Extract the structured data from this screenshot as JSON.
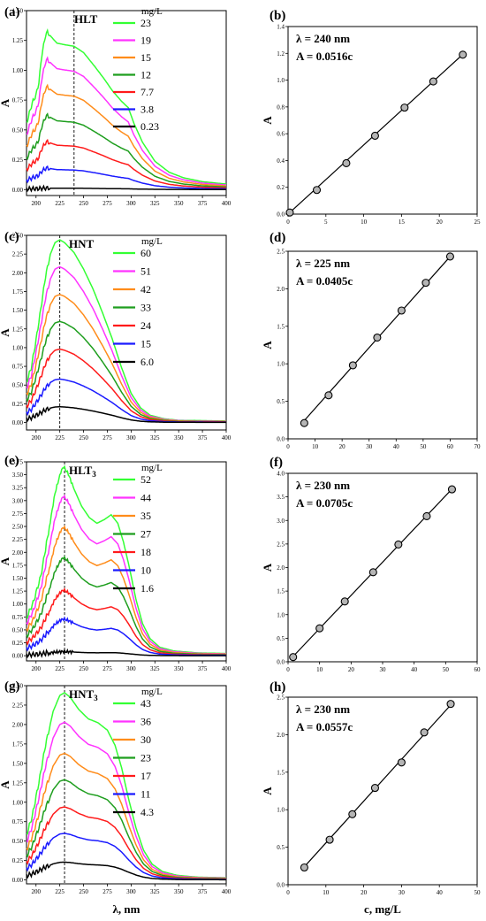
{
  "x_axis_label": "λ, nm",
  "c_axis_label": "c, mg/L",
  "chart_data": [
    {
      "type": "line",
      "panel": "(a)",
      "title": "HLT",
      "title_sub": "",
      "legend_title": "mg/L",
      "ylabel": "A",
      "xlim": [
        190,
        400
      ],
      "ylim": [
        -0.05,
        1.5
      ],
      "xticks": [
        "200",
        "225",
        "250",
        "275",
        "300",
        "325",
        "350",
        "375",
        "400"
      ],
      "yticks": [
        "0.00",
        "0.25",
        "0.50",
        "0.75",
        "1.00",
        "1.25",
        "1.50"
      ],
      "dashed_x": 240,
      "series": [
        {
          "name": "23",
          "color": "#33ff33",
          "peak": 1.32,
          "shape": "hlt"
        },
        {
          "name": "19",
          "color": "#ff33ff",
          "peak": 1.09,
          "shape": "hlt"
        },
        {
          "name": "15",
          "color": "#ff8c1a",
          "peak": 0.86,
          "shape": "hlt"
        },
        {
          "name": "12",
          "color": "#1e9e1e",
          "peak": 0.62,
          "shape": "hlt"
        },
        {
          "name": "7.7",
          "color": "#ff1a1a",
          "peak": 0.4,
          "shape": "hlt"
        },
        {
          "name": "3.8",
          "color": "#1a1aff",
          "peak": 0.18,
          "shape": "hlt"
        },
        {
          "name": "0.23",
          "color": "#000000",
          "peak": 0.012,
          "shape": "hlt"
        }
      ]
    },
    {
      "type": "line",
      "panel": "(c)",
      "title": "HNT",
      "title_sub": "",
      "legend_title": "mg/L",
      "ylabel": "A",
      "xlim": [
        190,
        400
      ],
      "ylim": [
        -0.1,
        2.5
      ],
      "xticks": [
        "200",
        "225",
        "250",
        "275",
        "300",
        "325",
        "350",
        "375",
        "400"
      ],
      "yticks": [
        "0.00",
        "0.25",
        "0.50",
        "0.75",
        "1.00",
        "1.25",
        "1.50",
        "1.75",
        "2.00",
        "2.25",
        "2.50"
      ],
      "dashed_x": 225,
      "series": [
        {
          "name": "60",
          "color": "#33ff33",
          "peak": 2.44,
          "shape": "hnt"
        },
        {
          "name": "51",
          "color": "#ff33ff",
          "peak": 2.08,
          "shape": "hnt"
        },
        {
          "name": "42",
          "color": "#ff8c1a",
          "peak": 1.71,
          "shape": "hnt"
        },
        {
          "name": "33",
          "color": "#1e9e1e",
          "peak": 1.35,
          "shape": "hnt"
        },
        {
          "name": "24",
          "color": "#ff1a1a",
          "peak": 0.98,
          "shape": "hnt"
        },
        {
          "name": "15",
          "color": "#1a1aff",
          "peak": 0.58,
          "shape": "hnt"
        },
        {
          "name": "6.0",
          "color": "#000000",
          "peak": 0.21,
          "shape": "hnt"
        }
      ]
    },
    {
      "type": "line",
      "panel": "(e)",
      "title": "HLT",
      "title_sub": "3",
      "legend_title": "mg/L",
      "ylabel": "A",
      "xlim": [
        190,
        400
      ],
      "ylim": [
        -0.1,
        3.75
      ],
      "xticks": [
        "200",
        "225",
        "250",
        "275",
        "300",
        "325",
        "350",
        "375",
        "400"
      ],
      "yticks": [
        "0.00",
        "0.25",
        "0.50",
        "0.75",
        "1.00",
        "1.25",
        "1.50",
        "1.75",
        "2.00",
        "2.25",
        "2.50",
        "2.75",
        "3.00",
        "3.25",
        "3.50",
        "3.75"
      ],
      "dashed_x": 230,
      "series": [
        {
          "name": "52",
          "color": "#33ff33",
          "peak": 3.66,
          "shape": "hlt3"
        },
        {
          "name": "44",
          "color": "#ff33ff",
          "peak": 3.09,
          "shape": "hlt3"
        },
        {
          "name": "35",
          "color": "#ff8c1a",
          "peak": 2.49,
          "shape": "hlt3"
        },
        {
          "name": "27",
          "color": "#1e9e1e",
          "peak": 1.9,
          "shape": "hlt3"
        },
        {
          "name": "18",
          "color": "#ff1a1a",
          "peak": 1.27,
          "shape": "hlt3"
        },
        {
          "name": "10",
          "color": "#1a1aff",
          "peak": 0.71,
          "shape": "hlt3"
        },
        {
          "name": "1.6",
          "color": "#000000",
          "peak": 0.08,
          "shape": "hlt3"
        }
      ]
    },
    {
      "type": "line",
      "panel": "(g)",
      "title": "HNT",
      "title_sub": "3",
      "legend_title": "mg/L",
      "ylabel": "A",
      "xlim": [
        190,
        400
      ],
      "ylim": [
        -0.05,
        2.5
      ],
      "xticks": [
        "200",
        "225",
        "250",
        "275",
        "300",
        "325",
        "350",
        "375",
        "400"
      ],
      "yticks": [
        "0.00",
        "0.25",
        "0.50",
        "0.75",
        "1.00",
        "1.25",
        "1.50",
        "1.75",
        "2.00",
        "2.25",
        "2.50"
      ],
      "dashed_x": 230,
      "series": [
        {
          "name": "43",
          "color": "#33ff33",
          "peak": 2.41,
          "shape": "hnt3"
        },
        {
          "name": "36",
          "color": "#ff33ff",
          "peak": 2.03,
          "shape": "hnt3"
        },
        {
          "name": "30",
          "color": "#ff8c1a",
          "peak": 1.63,
          "shape": "hnt3"
        },
        {
          "name": "23",
          "color": "#1e9e1e",
          "peak": 1.29,
          "shape": "hnt3"
        },
        {
          "name": "17",
          "color": "#ff1a1a",
          "peak": 0.94,
          "shape": "hnt3"
        },
        {
          "name": "11",
          "color": "#1a1aff",
          "peak": 0.6,
          "shape": "hnt3"
        },
        {
          "name": "4.3",
          "color": "#000000",
          "peak": 0.23,
          "shape": "hnt3"
        }
      ]
    },
    {
      "type": "scatter",
      "panel": "(b)",
      "lambda": "λ = 240 nm",
      "equation": "A = 0.0516c",
      "ylabel": "A",
      "xlim": [
        0,
        25
      ],
      "ylim": [
        0,
        1.4
      ],
      "xticks": [
        "0",
        "5",
        "10",
        "15",
        "20",
        "25"
      ],
      "yticks": [
        "0.0",
        "0.2",
        "0.4",
        "0.6",
        "0.8",
        "1.0",
        "1.2",
        "1.4"
      ],
      "slope": 0.0516,
      "x": [
        0.23,
        3.8,
        7.7,
        11.5,
        15.4,
        19.2,
        23.1
      ],
      "y": [
        0.012,
        0.18,
        0.38,
        0.585,
        0.795,
        0.99,
        1.19
      ]
    },
    {
      "type": "scatter",
      "panel": "(d)",
      "lambda": "λ = 225 nm",
      "equation": "A = 0.0405c",
      "ylabel": "A",
      "xlim": [
        0,
        70
      ],
      "ylim": [
        0,
        2.5
      ],
      "xticks": [
        "0",
        "10",
        "20",
        "30",
        "40",
        "50",
        "60",
        "70"
      ],
      "yticks": [
        "0.0",
        "0.5",
        "1.0",
        "1.5",
        "2.0",
        "2.5"
      ],
      "slope": 0.0405,
      "x": [
        6.0,
        15,
        24,
        33,
        42,
        51,
        60
      ],
      "y": [
        0.21,
        0.58,
        0.98,
        1.35,
        1.71,
        2.08,
        2.43
      ]
    },
    {
      "type": "scatter",
      "panel": "(f)",
      "lambda": "λ = 230 nm",
      "equation": "A = 0.0705c",
      "ylabel": "A",
      "xlim": [
        0,
        60
      ],
      "ylim": [
        0,
        4.0
      ],
      "xticks": [
        "0",
        "10",
        "20",
        "30",
        "40",
        "50",
        "60"
      ],
      "yticks": [
        "0.0",
        "0.5",
        "1.0",
        "1.5",
        "2.0",
        "2.5",
        "3.0",
        "3.5",
        "4.0"
      ],
      "slope": 0.0705,
      "x": [
        1.6,
        10,
        18,
        27,
        35,
        44,
        52
      ],
      "y": [
        0.1,
        0.71,
        1.28,
        1.9,
        2.49,
        3.09,
        3.66
      ]
    },
    {
      "type": "scatter",
      "panel": "(h)",
      "lambda": "λ = 230 nm",
      "equation": "A = 0.0557c",
      "ylabel": "A",
      "xlim": [
        0,
        50
      ],
      "ylim": [
        0,
        2.5
      ],
      "xticks": [
        "0",
        "10",
        "20",
        "30",
        "40",
        "50"
      ],
      "yticks": [
        "0.0",
        "0.5",
        "1.0",
        "1.5",
        "2.0",
        "2.5"
      ],
      "slope": 0.0557,
      "x": [
        4.3,
        11,
        17,
        23,
        30,
        36,
        43
      ],
      "y": [
        0.23,
        0.6,
        0.94,
        1.29,
        1.63,
        2.03,
        2.41
      ]
    }
  ]
}
